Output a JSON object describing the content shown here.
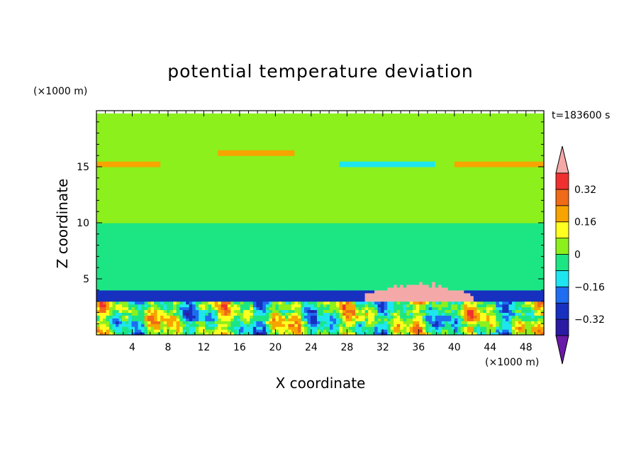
{
  "chart_data": {
    "type": "heatmap",
    "title": "potential temperature deviation",
    "xlabel": "X coordinate",
    "ylabel": "Z coordinate",
    "x_units": "(×1000 m)",
    "y_units": "(×1000 m)",
    "time_label": "t=183600 s",
    "xlim": [
      0,
      50
    ],
    "ylim": [
      0,
      20
    ],
    "x_ticks": [
      4,
      8,
      12,
      16,
      20,
      24,
      28,
      32,
      36,
      40,
      44,
      48
    ],
    "y_ticks": [
      5,
      10,
      15
    ],
    "colorbar": {
      "levels": [
        -0.4,
        -0.32,
        -0.24,
        -0.16,
        -0.08,
        0,
        0.08,
        0.16,
        0.24,
        0.32,
        0.4
      ],
      "tick_labels": [
        "0.32",
        "0.16",
        "0",
        "−0.16",
        "−0.32"
      ],
      "tick_values": [
        0.32,
        0.16,
        0,
        -0.16,
        -0.32
      ],
      "colors": [
        "#6a1aa8",
        "#2b1aa3",
        "#1730c0",
        "#1f6df0",
        "#1ee6f0",
        "#1ce684",
        "#8cf01c",
        "#ffff20",
        "#f7a400",
        "#f06a18",
        "#f03030",
        "#f5a8a8"
      ],
      "extend": "both"
    },
    "background_value_upper": 0.04,
    "background_value_lower": -0.04,
    "features": [
      {
        "desc": "upper layer",
        "x": [
          0,
          50
        ],
        "z": [
          10,
          19.5
        ],
        "value": 0.04
      },
      {
        "desc": "mid layer",
        "x": [
          0,
          50
        ],
        "z": [
          4,
          10
        ],
        "value": -0.04
      },
      {
        "desc": "warm streak",
        "x": [
          0,
          7
        ],
        "z": [
          14.9,
          15.5
        ],
        "value": 0.2
      },
      {
        "desc": "warm streak",
        "x": [
          13.5,
          22
        ],
        "z": [
          15.9,
          16.5
        ],
        "value": 0.2
      },
      {
        "desc": "warm streak",
        "x": [
          40,
          50
        ],
        "z": [
          14.9,
          15.5
        ],
        "value": 0.2
      },
      {
        "desc": "cool streak",
        "x": [
          27,
          38
        ],
        "z": [
          14.9,
          15.6
        ],
        "value": -0.1
      },
      {
        "desc": "cold inversion",
        "x": [
          0,
          50
        ],
        "z": [
          2.9,
          3.9
        ],
        "value": -0.3
      },
      {
        "desc": "strong warm anomaly",
        "x": [
          30,
          42
        ],
        "z": [
          2.5,
          4.8
        ],
        "value": 0.4
      }
    ]
  }
}
